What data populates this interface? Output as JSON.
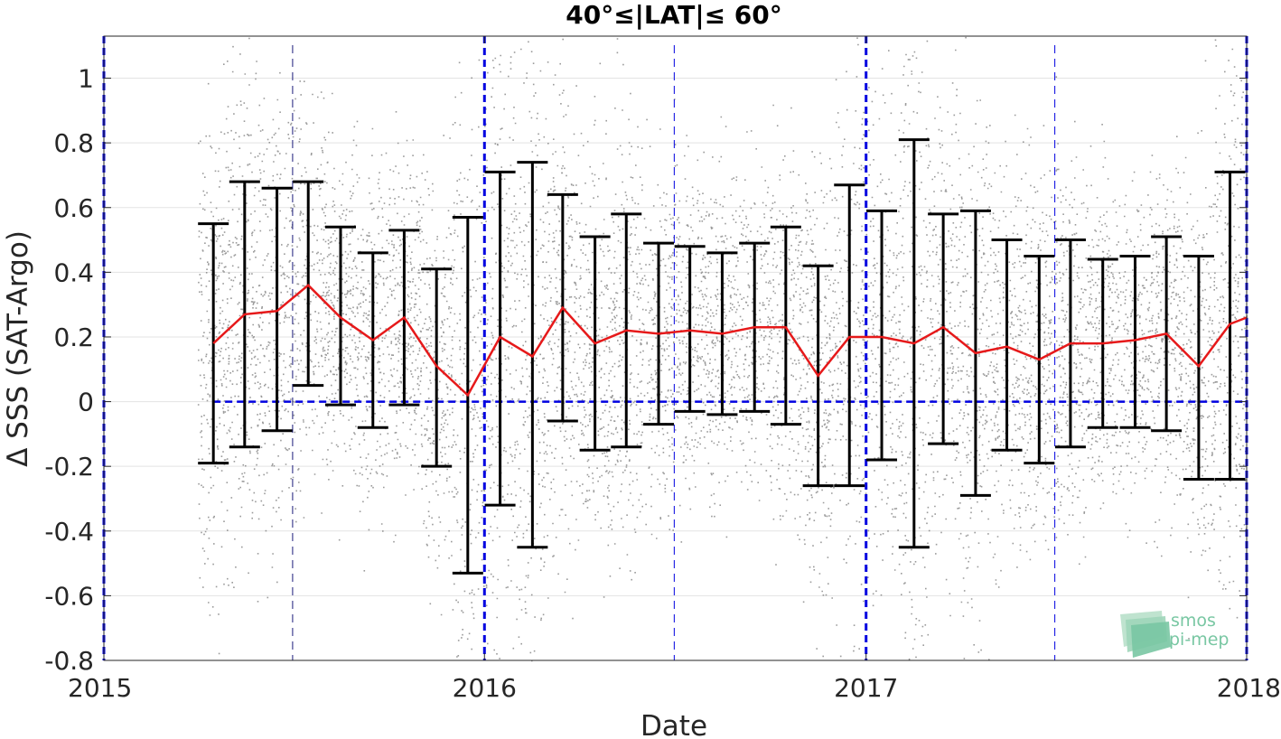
{
  "chart_data": {
    "type": "line",
    "title": "40°≤|LAT|≤ 60°",
    "xlabel": "Date",
    "ylabel": "Δ SSS (SAT-Argo)",
    "xlim": [
      "2015-01-01",
      "2018-01-01"
    ],
    "ylim": [
      -0.8,
      1.13
    ],
    "x_ticks": [
      "2015",
      "2016",
      "2017",
      "2018"
    ],
    "y_ticks": [
      -0.8,
      -0.6,
      -0.4,
      -0.2,
      0,
      0.2,
      0.4,
      0.6,
      0.8,
      1
    ],
    "grid": true,
    "legend": "none",
    "series": [
      {
        "kind": "mean-with-error-bars",
        "color": "#e6191a",
        "x": [
          "2015-04-16",
          "2015-05-16",
          "2015-06-16",
          "2015-07-16",
          "2015-08-16",
          "2015-09-16",
          "2015-10-16",
          "2015-11-16",
          "2015-12-16",
          "2016-01-16",
          "2016-02-16",
          "2016-03-16",
          "2016-04-16",
          "2016-05-16",
          "2016-06-16",
          "2016-07-16",
          "2016-08-16",
          "2016-09-16",
          "2016-10-16",
          "2016-11-16",
          "2016-12-16",
          "2017-01-16",
          "2017-02-16",
          "2017-03-16",
          "2017-04-16",
          "2017-05-16",
          "2017-06-16",
          "2017-07-16",
          "2017-08-16",
          "2017-09-16",
          "2017-10-16",
          "2017-11-16",
          "2017-12-16"
        ],
        "values": [
          0.18,
          0.27,
          0.28,
          0.36,
          0.26,
          0.19,
          0.26,
          0.11,
          0.02,
          0.2,
          0.14,
          0.29,
          0.18,
          0.22,
          0.21,
          0.22,
          0.21,
          0.23,
          0.23,
          0.08,
          0.2,
          0.2,
          0.18,
          0.23,
          0.15,
          0.17,
          0.13,
          0.18,
          0.18,
          0.19,
          0.21,
          0.11,
          0.24
        ],
        "upper": [
          0.55,
          0.68,
          0.66,
          0.68,
          0.54,
          0.46,
          0.53,
          0.41,
          0.57,
          0.71,
          0.74,
          0.64,
          0.51,
          0.58,
          0.49,
          0.48,
          0.46,
          0.49,
          0.54,
          0.42,
          0.67,
          0.59,
          0.81,
          0.58,
          0.59,
          0.5,
          0.45,
          0.5,
          0.44,
          0.45,
          0.51,
          0.45,
          0.71
        ],
        "lower": [
          -0.19,
          -0.14,
          -0.09,
          0.05,
          -0.01,
          -0.08,
          -0.01,
          -0.2,
          -0.53,
          -0.32,
          -0.45,
          -0.06,
          -0.15,
          -0.14,
          -0.07,
          -0.03,
          -0.04,
          -0.03,
          -0.07,
          -0.26,
          -0.26,
          -0.18,
          -0.45,
          -0.13,
          -0.29,
          -0.15,
          -0.19,
          -0.14,
          -0.08,
          -0.08,
          -0.09,
          -0.24,
          -0.24
        ],
        "extra_point": {
          "x": "2018-01-01",
          "value": 0.26
        }
      },
      {
        "kind": "scatter-cloud",
        "color": "#7a7a7a",
        "x_range": [
          "2015-04-01",
          "2018-01-01"
        ]
      }
    ],
    "reference_lines": {
      "zero_line": {
        "y": 0,
        "style": "dashed",
        "color": "#0000e0"
      },
      "year_lines": [
        "2015-01-01",
        "2016-01-01",
        "2017-01-01",
        "2018-01-01"
      ],
      "half_year_lines": [
        "2015-07-01",
        "2016-07-01",
        "2017-07-01"
      ],
      "color": "#0000e0"
    }
  },
  "logo": {
    "line1": "smos",
    "line2": "pi-mep",
    "icon": "layered-waves-icon",
    "color": "#79c7a3"
  }
}
